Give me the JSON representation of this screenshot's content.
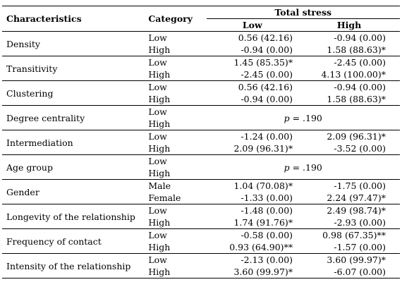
{
  "table": {
    "headers": {
      "characteristics": "Characteristics",
      "category": "Category",
      "total_stress": "Total stress",
      "low": "Low",
      "high": "High"
    },
    "groups": [
      {
        "name": "Density",
        "rows": [
          {
            "cat": "Low",
            "low": "0.56 (42.16)",
            "high": "-0.94 (0.00)"
          },
          {
            "cat": "High",
            "low": "-0.94 (0.00)",
            "high": "1.58 (88.63)*"
          }
        ]
      },
      {
        "name": "Transitivity",
        "rows": [
          {
            "cat": "Low",
            "low": "1.45 (85.35)*",
            "high": "-2.45 (0.00)"
          },
          {
            "cat": "High",
            "low": "-2.45 (0.00)",
            "high": "4.13 (100.00)*"
          }
        ]
      },
      {
        "name": "Clustering",
        "rows": [
          {
            "cat": "Low",
            "low": "0.56 (42.16)",
            "high": "-0.94 (0.00)"
          },
          {
            "cat": "High",
            "low": "-0.94 (0.00)",
            "high": "1.58 (88.63)*"
          }
        ]
      },
      {
        "name": "Degree centrality",
        "pvalue": {
          "label": "p",
          "text": " = .190"
        },
        "rows": [
          {
            "cat": "Low"
          },
          {
            "cat": "High"
          }
        ]
      },
      {
        "name": "Intermediation",
        "rows": [
          {
            "cat": "Low",
            "low": "-1.24 (0.00)",
            "high": "2.09 (96.31)*"
          },
          {
            "cat": "High",
            "low": "2.09 (96.31)*",
            "high": "-3.52 (0.00)"
          }
        ]
      },
      {
        "name": "Age group",
        "pvalue": {
          "label": "p",
          "text": " = .190"
        },
        "rows": [
          {
            "cat": "Low"
          },
          {
            "cat": "High"
          }
        ]
      },
      {
        "name": "Gender",
        "rows": [
          {
            "cat": "Male",
            "low": "1.04 (70.08)*",
            "high": "-1.75 (0.00)"
          },
          {
            "cat": "Female",
            "low": "-1.33 (0.00)",
            "high": "2.24 (97.47)*"
          }
        ]
      },
      {
        "name": "Longevity of the relationship",
        "rows": [
          {
            "cat": "Low",
            "low": "-1.48 (0.00)",
            "high": "2.49 (98.74)*"
          },
          {
            "cat": "High",
            "low": "1.74 (91.76)*",
            "high": "-2.93 (0.00)"
          }
        ]
      },
      {
        "name": "Frequency of contact",
        "rows": [
          {
            "cat": "Low",
            "low": "-0.58 (0.00)",
            "high": "0.98 (67.35)**"
          },
          {
            "cat": "High",
            "low": "0.93 (64.90)**",
            "high": "-1.57 (0.00)"
          }
        ]
      },
      {
        "name": "Intensity of the relationship",
        "rows": [
          {
            "cat": "Low",
            "low": "-2.13 (0.00)",
            "high": "3.60 (99.97)*"
          },
          {
            "cat": "High",
            "low": "3.60 (99.97)*",
            "high": "-6.07 (0.00)"
          }
        ]
      }
    ]
  }
}
